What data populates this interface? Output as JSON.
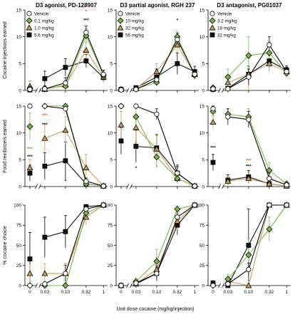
{
  "figure": {
    "xlabel": "Unit dose cocaine (mg/kg/injection)",
    "row_ylabels": [
      "Cocaine injections earned",
      "Food reinforcers earned",
      "% cocaine choice"
    ]
  },
  "colors": {
    "vehicle": "#ffffff",
    "dose_low": "#7ab648",
    "dose_mid": "#c89b5a",
    "dose_high": "#111111",
    "star_orange": "#e0602a",
    "star_green": "#7ab648",
    "star_black": "#000000"
  },
  "chart_data": [
    {
      "type": "line",
      "title": "D3 agonist, PD-128907",
      "row": 0,
      "col": 0,
      "ylabel": "Cocaine injections earned",
      "xlabel": "",
      "x_categories": [
        "0",
        "0.03",
        "0.10",
        "0.32",
        "1"
      ],
      "ylim": [
        0,
        15
      ],
      "yticks": [
        0,
        5,
        10,
        15
      ],
      "series": [
        {
          "name": "Vehicle",
          "marker": "circle",
          "color": "#ffffff",
          "values": [
            0.2,
            0.3,
            1.4,
            10.8,
            3.0
          ],
          "err": [
            0.3,
            0.5,
            1.0,
            1.2,
            0.8
          ]
        },
        {
          "name": "0.1 mg/kg",
          "marker": "diamond",
          "color": "#7ab648",
          "values": [
            0.3,
            0.4,
            0.8,
            10.2,
            2.8
          ],
          "err": [
            0.3,
            0.5,
            0.8,
            1.3,
            0.8
          ]
        },
        {
          "name": "1.0 mg/kg",
          "marker": "triangle",
          "color": "#c89b5a",
          "values": [
            0.8,
            0.2,
            1.0,
            7.5,
            2.5
          ],
          "err": [
            1.0,
            0.4,
            0.8,
            1.5,
            0.8
          ]
        },
        {
          "name": "5.6 mg/kg",
          "marker": "square",
          "color": "#111111",
          "values": [
            0.1,
            2.2,
            4.3,
            5.5,
            2.4
          ],
          "err": [
            0.3,
            1.4,
            1.6,
            1.2,
            0.8
          ]
        }
      ],
      "annotations": [
        {
          "text": "*",
          "x": "0.32",
          "y": 14.5,
          "color": "#e0602a"
        },
        {
          "text": "***",
          "x": "0.32",
          "y": 12.8,
          "color": "#000000"
        }
      ]
    },
    {
      "type": "line",
      "title": "D3 partial agonist, RGH 237",
      "row": 0,
      "col": 1,
      "ylabel": "",
      "xlabel": "",
      "x_categories": [
        "0",
        "0.03",
        "0.10",
        "0.32",
        "1"
      ],
      "ylim": [
        0,
        15
      ],
      "yticks": [
        0,
        5,
        10,
        15
      ],
      "series": [
        {
          "name": "Vehicle",
          "marker": "circle",
          "color": "#ffffff",
          "values": [
            0.1,
            0.2,
            2.0,
            9.5,
            3.0
          ],
          "err": [
            0.2,
            0.3,
            0.8,
            1.2,
            0.8
          ]
        },
        {
          "name": "10 mg/kg",
          "marker": "diamond",
          "color": "#7ab648",
          "values": [
            0.2,
            0.3,
            1.5,
            10.0,
            2.8
          ],
          "err": [
            0.2,
            0.3,
            0.8,
            1.0,
            0.8
          ]
        },
        {
          "name": "32 mg/kg",
          "marker": "triangle",
          "color": "#c89b5a",
          "values": [
            0.2,
            0.3,
            3.5,
            8.5,
            3.0
          ],
          "err": [
            0.2,
            0.3,
            1.5,
            1.5,
            0.8
          ]
        },
        {
          "name": "56 mg/kg",
          "marker": "square",
          "color": "#111111",
          "values": [
            0.2,
            0.5,
            2.5,
            5.0,
            3.5
          ],
          "err": [
            0.2,
            0.4,
            1.5,
            2.0,
            1.0
          ]
        }
      ],
      "annotations": [
        {
          "text": "*",
          "x": "0.32",
          "y": 12.8,
          "color": "#000000"
        }
      ]
    },
    {
      "type": "line",
      "title": "D3 antagonist, PG01037",
      "row": 0,
      "col": 2,
      "ylabel": "",
      "xlabel": "",
      "x_categories": [
        "0",
        "0.03",
        "0.10",
        "0.32",
        "1"
      ],
      "ylim": [
        0,
        15
      ],
      "yticks": [
        0,
        5,
        10,
        15
      ],
      "series": [
        {
          "name": "Vehicle",
          "marker": "circle",
          "color": "#ffffff",
          "values": [
            0.3,
            0.3,
            2.5,
            8.5,
            3.5
          ],
          "err": [
            0.3,
            0.4,
            1.5,
            1.5,
            0.8
          ]
        },
        {
          "name": "3.2 mg/kg",
          "marker": "diamond",
          "color": "#7ab648",
          "values": [
            0.5,
            2.5,
            6.5,
            7.0,
            3.2
          ],
          "err": [
            0.5,
            1.5,
            3.5,
            2.0,
            0.8
          ]
        },
        {
          "name": "18 mg/kg",
          "marker": "triangle",
          "color": "#c89b5a",
          "values": [
            0.3,
            1.5,
            3.0,
            5.0,
            3.5
          ],
          "err": [
            0.3,
            0.8,
            3.0,
            1.5,
            0.8
          ]
        },
        {
          "name": "32 mg/kg",
          "marker": "square",
          "color": "#111111",
          "values": [
            0.2,
            0.4,
            3.0,
            5.5,
            3.8
          ],
          "err": [
            0.3,
            0.4,
            1.5,
            1.5,
            0.8
          ]
        }
      ],
      "annotations": []
    },
    {
      "type": "line",
      "title": "",
      "row": 1,
      "col": 0,
      "ylabel": "Food reinforcers earned",
      "xlabel": "",
      "x_categories": [
        "0",
        "0.03",
        "0.10",
        "0.32",
        "1"
      ],
      "ylim": [
        0,
        15
      ],
      "yticks": [
        0,
        5,
        10,
        15
      ],
      "series": [
        {
          "name": "Vehicle",
          "marker": "circle",
          "color": "#ffffff",
          "values": [
            15,
            15,
            14.5,
            1.0,
            0.1
          ],
          "err": [
            0.2,
            0.2,
            0.5,
            0.6,
            0.2
          ]
        },
        {
          "name": "0.1 mg/kg",
          "marker": "diamond",
          "color": "#7ab648",
          "values": [
            11.2,
            15,
            15,
            0.5,
            0.1
          ],
          "err": [
            2.5,
            0.2,
            0.2,
            0.5,
            0.2
          ]
        },
        {
          "name": "1.0 mg/kg",
          "marker": "triangle",
          "color": "#c89b5a",
          "values": [
            3.5,
            9.0,
            10.5,
            3.5,
            0.1
          ],
          "err": [
            1.5,
            2.5,
            2.5,
            2.5,
            0.2
          ]
        },
        {
          "name": "5.6 mg/kg",
          "marker": "square",
          "color": "#111111",
          "values": [
            2.5,
            3.8,
            4.8,
            0.5,
            0.1
          ],
          "err": [
            1.5,
            2.5,
            3.5,
            0.5,
            0.2
          ]
        }
      ],
      "annotations": [
        {
          "text": "***",
          "x": "0",
          "y": 6.8,
          "color": "#e0602a"
        },
        {
          "text": "***",
          "x": "0",
          "y": 5.3,
          "color": "#000000"
        },
        {
          "text": "***",
          "x": "0.03",
          "y": 13.0,
          "color": "#e0602a"
        },
        {
          "text": "***",
          "x": "0.03",
          "y": 11.3,
          "color": "#000000"
        },
        {
          "text": "*",
          "x": "0.10",
          "y": 0.7,
          "color": "#000000"
        }
      ]
    },
    {
      "type": "line",
      "title": "",
      "row": 1,
      "col": 1,
      "ylabel": "",
      "xlabel": "",
      "x_categories": [
        "0",
        "0.03",
        "0.10",
        "0.32",
        "1"
      ],
      "ylim": [
        0,
        15
      ],
      "yticks": [
        0,
        5,
        10,
        15
      ],
      "series": [
        {
          "name": "Vehicle",
          "marker": "circle",
          "color": "#ffffff",
          "values": [
            15,
            15,
            13.5,
            2.5,
            0.1
          ],
          "err": [
            0.2,
            0.2,
            1.0,
            1.2,
            0.2
          ]
        },
        {
          "name": "10 mg/kg",
          "marker": "diamond",
          "color": "#7ab648",
          "values": [
            15,
            13,
            5.5,
            1.5,
            0.1
          ],
          "err": [
            0.2,
            1.5,
            2.0,
            1.0,
            0.2
          ]
        },
        {
          "name": "32 mg/kg",
          "marker": "triangle",
          "color": "#c89b5a",
          "values": [
            11.5,
            11.0,
            7.0,
            1.5,
            0.1
          ],
          "err": [
            2.5,
            2.5,
            2.5,
            1.0,
            0.2
          ]
        },
        {
          "name": "56 mg/kg",
          "marker": "square",
          "color": "#111111",
          "values": [
            8.5,
            7.5,
            7.2,
            2.5,
            0.1
          ],
          "err": [
            2.5,
            3.0,
            2.5,
            1.5,
            0.2
          ]
        }
      ],
      "annotations": [
        {
          "text": "*",
          "x": "0.03",
          "y": 3.2,
          "color": "#000000"
        },
        {
          "text": "*",
          "x": "0.10",
          "y": 3.4,
          "color": "#7ab648"
        }
      ]
    },
    {
      "type": "line",
      "title": "",
      "row": 1,
      "col": 2,
      "ylabel": "",
      "xlabel": "",
      "x_categories": [
        "0",
        "0.03",
        "0.10",
        "0.32",
        "1"
      ],
      "ylim": [
        0,
        15
      ],
      "yticks": [
        0,
        5,
        10,
        15
      ],
      "series": [
        {
          "name": "Vehicle",
          "marker": "circle",
          "color": "#ffffff",
          "values": [
            14.5,
            13.0,
            12.5,
            1.5,
            0.3
          ],
          "err": [
            0.5,
            1.5,
            1.5,
            1.0,
            0.3
          ]
        },
        {
          "name": "3.2 mg/kg",
          "marker": "diamond",
          "color": "#7ab648",
          "values": [
            14.0,
            13.5,
            13.0,
            3.0,
            0.5
          ],
          "err": [
            0.8,
            1.0,
            1.5,
            1.5,
            0.5
          ]
        },
        {
          "name": "18 mg/kg",
          "marker": "triangle",
          "color": "#c89b5a",
          "values": [
            12.0,
            1.0,
            1.5,
            0.5,
            0.1
          ],
          "err": [
            1.2,
            0.8,
            1.0,
            0.5,
            0.2
          ]
        },
        {
          "name": "32 mg/kg",
          "marker": "square",
          "color": "#111111",
          "values": [
            4.5,
            1.2,
            1.8,
            0.5,
            0.1
          ],
          "err": [
            1.5,
            1.0,
            1.2,
            0.5,
            0.2
          ]
        }
      ],
      "annotations": [
        {
          "text": "***",
          "x": "0",
          "y": 7.0,
          "color": "#000000"
        },
        {
          "text": "***",
          "x": "0.10",
          "y": 4.6,
          "color": "#e0602a"
        },
        {
          "text": "***",
          "x": "0.10",
          "y": 3.5,
          "color": "#000000"
        }
      ]
    },
    {
      "type": "line",
      "title": "",
      "row": 2,
      "col": 0,
      "ylabel": "% cocaine choice",
      "xlabel": "",
      "x_categories": [
        "0",
        "0.03",
        "0.10",
        "0.32",
        "1"
      ],
      "ylim": [
        0,
        100
      ],
      "yticks": [
        0,
        25,
        50,
        75,
        100
      ],
      "series": [
        {
          "name": "Vehicle",
          "marker": "circle",
          "color": "#ffffff",
          "values": [
            0,
            2,
            15,
            95,
            100
          ],
          "err": [
            1,
            2,
            10,
            4,
            1
          ]
        },
        {
          "name": "0.1 mg/kg",
          "marker": "diamond",
          "color": "#7ab648",
          "values": [
            0,
            0,
            0,
            90,
            100
          ],
          "err": [
            1,
            1,
            2,
            6,
            1
          ]
        },
        {
          "name": "1.0 mg/kg",
          "marker": "triangle",
          "color": "#c89b5a",
          "values": [
            15,
            15,
            15,
            85,
            100
          ],
          "err": [
            12,
            12,
            12,
            10,
            1
          ]
        },
        {
          "name": "5.6 mg/kg",
          "marker": "square",
          "color": "#111111",
          "values": [
            33,
            60,
            67,
            98,
            100
          ],
          "err": [
            33,
            25,
            20,
            2,
            1
          ]
        }
      ],
      "annotations": []
    },
    {
      "type": "line",
      "title": "",
      "row": 2,
      "col": 1,
      "ylabel": "",
      "xlabel": "",
      "x_categories": [
        "0",
        "0.03",
        "0.10",
        "0.32",
        "1"
      ],
      "ylim": [
        0,
        100
      ],
      "yticks": [
        0,
        25,
        50,
        75,
        100
      ],
      "series": [
        {
          "name": "Vehicle",
          "marker": "circle",
          "color": "#ffffff",
          "values": [
            0,
            3,
            15,
            85,
            100
          ],
          "err": [
            1,
            2,
            8,
            8,
            1
          ]
        },
        {
          "name": "10 mg/kg",
          "marker": "diamond",
          "color": "#7ab648",
          "values": [
            0,
            5,
            30,
            95,
            100
          ],
          "err": [
            1,
            4,
            15,
            4,
            1
          ]
        },
        {
          "name": "32 mg/kg",
          "marker": "triangle",
          "color": "#c89b5a",
          "values": [
            0,
            2,
            20,
            80,
            100
          ],
          "err": [
            1,
            2,
            15,
            10,
            1
          ]
        },
        {
          "name": "56 mg/kg",
          "marker": "square",
          "color": "#111111",
          "values": [
            0,
            2,
            15,
            75,
            100
          ],
          "err": [
            1,
            2,
            10,
            12,
            1
          ]
        }
      ],
      "annotations": []
    },
    {
      "type": "line",
      "title": "",
      "row": 2,
      "col": 2,
      "ylabel": "",
      "xlabel": "",
      "x_categories": [
        "0",
        "0.03",
        "0.10",
        "0.32",
        "1"
      ],
      "ylim": [
        0,
        100
      ],
      "yticks": [
        0,
        25,
        50,
        75,
        100
      ],
      "series": [
        {
          "name": "Vehicle",
          "marker": "circle",
          "color": "#ffffff",
          "values": [
            0,
            2,
            20,
            100,
            100
          ],
          "err": [
            1,
            2,
            8,
            1,
            1
          ]
        },
        {
          "name": "3.2 mg/kg",
          "marker": "diamond",
          "color": "#7ab648",
          "values": [
            0,
            8,
            38,
            70,
            100
          ],
          "err": [
            1,
            6,
            20,
            15,
            1
          ]
        },
        {
          "name": "18 mg/kg",
          "marker": "triangle",
          "color": "#c89b5a",
          "values": [
            2,
            5,
            0,
            100,
            100
          ],
          "err": [
            2,
            4,
            2,
            1,
            1
          ]
        },
        {
          "name": "32 mg/kg",
          "marker": "square",
          "color": "#111111",
          "values": [
            3,
            0,
            50,
            100,
            100
          ],
          "err": [
            3,
            1,
            45,
            1,
            1
          ]
        }
      ],
      "annotations": []
    }
  ]
}
